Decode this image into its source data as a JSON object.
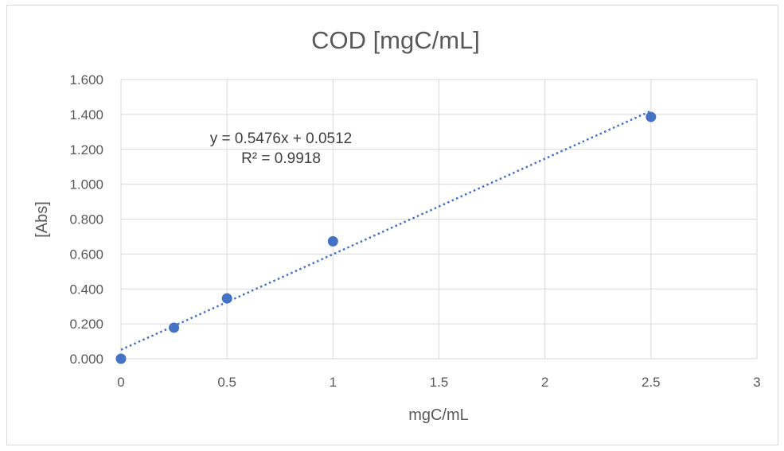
{
  "chart_data": {
    "type": "scatter",
    "title": "COD [mgC/mL]",
    "xlabel": "mgC/mL",
    "ylabel": "[Abs]",
    "xlim": [
      0,
      3
    ],
    "ylim": [
      0,
      1.6
    ],
    "x_ticks": [
      "0",
      "0.5",
      "1",
      "1.5",
      "2",
      "2.5",
      "3"
    ],
    "y_ticks": [
      "0.000",
      "0.200",
      "0.400",
      "0.600",
      "0.800",
      "1.000",
      "1.200",
      "1.400",
      "1.600"
    ],
    "grid": true,
    "legend": "none",
    "series": [
      {
        "x": [
          0,
          0.25,
          0.5,
          1,
          2.5
        ],
        "y": [
          0.0,
          0.178,
          0.346,
          0.673,
          1.386
        ],
        "color": "#4472c4"
      }
    ],
    "trendline": {
      "type": "linear",
      "slope": 0.5476,
      "intercept": 0.0512,
      "x_range": [
        0,
        2.5
      ],
      "style": "dotted",
      "color": "#4472c4"
    },
    "annotations": {
      "equation": "y = 0.5476x + 0.0512",
      "r_squared": "R² = 0.9918"
    }
  }
}
